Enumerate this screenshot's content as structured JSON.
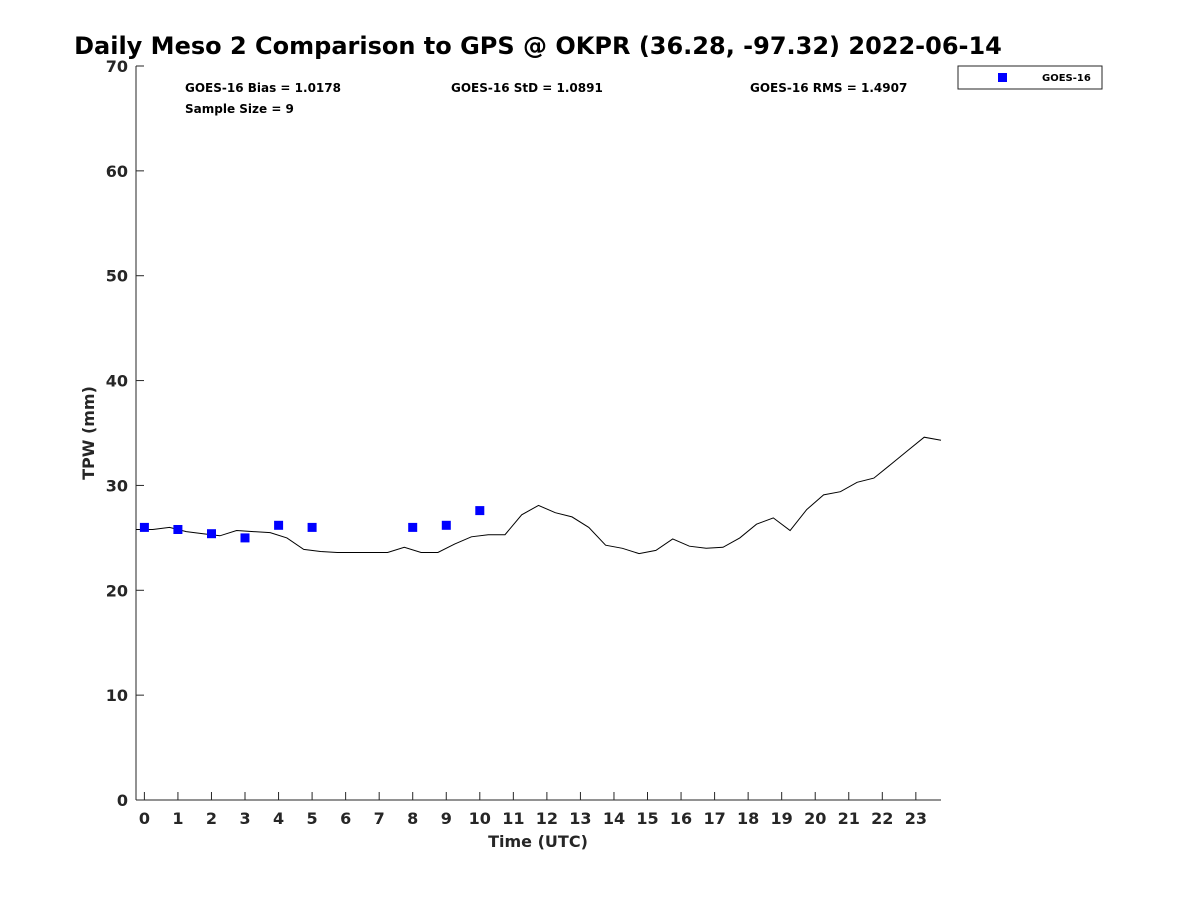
{
  "chart_data": {
    "type": "scatter",
    "title": "Daily Meso 2 Comparison to GPS @ OKPR (36.28, -97.32) 2022-06-14",
    "xlabel": "Time (UTC)",
    "ylabel": "TPW (mm)",
    "xlim": [
      -0.25,
      23.75
    ],
    "ylim": [
      0,
      70
    ],
    "xticks": [
      0,
      1,
      2,
      3,
      4,
      5,
      6,
      7,
      8,
      9,
      10,
      11,
      12,
      13,
      14,
      15,
      16,
      17,
      18,
      19,
      20,
      21,
      22,
      23
    ],
    "yticks": [
      0,
      10,
      20,
      30,
      40,
      50,
      60,
      70
    ],
    "grid": false,
    "legend_position": "top-right, outside plot",
    "legend": [
      "GOES-16"
    ],
    "stats": {
      "bias": "GOES-16 Bias = 1.0178",
      "std": "GOES-16 StD = 1.0891",
      "rms": "GOES-16 RMS = 1.4907",
      "sample": "Sample Size = 9"
    },
    "series": [
      {
        "name": "GOES-16",
        "kind": "scatter",
        "color": "#0000ff",
        "x": [
          0,
          1,
          2,
          3,
          4,
          5,
          8,
          9,
          10
        ],
        "y": [
          26.0,
          25.8,
          25.4,
          25.0,
          26.2,
          26.0,
          26.0,
          26.2,
          27.6
        ]
      },
      {
        "kind": "line",
        "color": "#000000",
        "x": [
          -0.25,
          0.25,
          0.75,
          1.25,
          1.75,
          2.25,
          2.75,
          3.25,
          3.75,
          4.25,
          4.75,
          5.25,
          5.75,
          6.25,
          6.75,
          7.25,
          7.75,
          8.25,
          8.75,
          9.25,
          9.75,
          10.25,
          10.75,
          11.25,
          11.75,
          12.25,
          12.75,
          13.25,
          13.75,
          14.25,
          14.75,
          15.25,
          15.75,
          16.25,
          16.75,
          17.25,
          17.75,
          18.25,
          18.75,
          19.25,
          19.75,
          20.25,
          20.75,
          21.25,
          21.75,
          22.25,
          22.75,
          23.25,
          23.75
        ],
        "y": [
          25.8,
          25.8,
          26.0,
          25.6,
          25.4,
          25.2,
          25.7,
          25.6,
          25.5,
          25.0,
          23.9,
          23.7,
          23.6,
          23.6,
          23.6,
          23.6,
          24.1,
          23.6,
          23.6,
          24.4,
          25.1,
          25.3,
          25.3,
          27.2,
          28.1,
          27.4,
          27.0,
          26.0,
          24.3,
          24.0,
          23.5,
          23.8,
          24.9,
          24.2,
          24.0,
          24.1,
          25.0,
          26.3,
          26.9,
          25.7,
          27.7,
          29.1,
          29.4,
          30.3,
          30.7,
          32.0,
          33.3,
          34.6,
          34.3
        ]
      }
    ]
  }
}
